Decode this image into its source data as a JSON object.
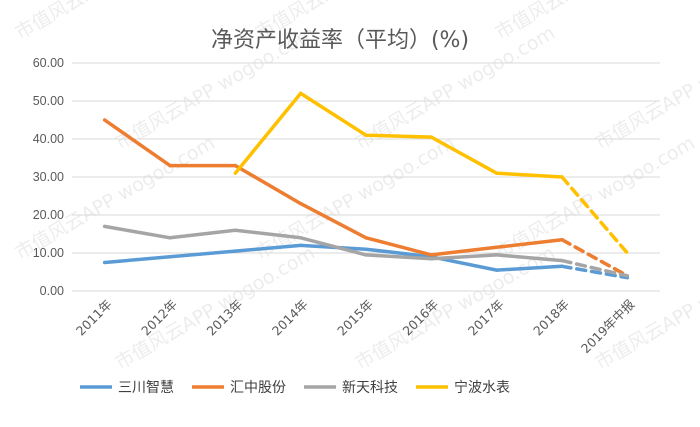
{
  "chart_data": {
    "type": "line",
    "title": "净资产收益率（平均）(%)",
    "categories": [
      "2011年",
      "2012年",
      "2013年",
      "2014年",
      "2015年",
      "2016年",
      "2017年",
      "2018年",
      "2019年中报"
    ],
    "ylim": [
      0,
      60
    ],
    "yticks": [
      "0.00",
      "10.00",
      "20.00",
      "30.00",
      "40.00",
      "50.00",
      "60.00"
    ],
    "grid": true,
    "legend_position": "bottom",
    "series": [
      {
        "name": "三川智慧",
        "color": "#5b9bd5",
        "values": [
          7.5,
          9.0,
          10.5,
          12.0,
          11.0,
          9.0,
          5.5,
          6.5,
          3.5
        ]
      },
      {
        "name": "汇中股份",
        "color": "#ed7d31",
        "values": [
          45.0,
          33.0,
          33.0,
          23.0,
          14.0,
          9.5,
          11.5,
          13.5,
          4.0
        ]
      },
      {
        "name": "新天科技",
        "color": "#a5a5a5",
        "values": [
          17.0,
          14.0,
          16.0,
          14.0,
          9.5,
          8.5,
          9.5,
          8.0,
          4.0
        ]
      },
      {
        "name": "宁波水表",
        "color": "#ffc000",
        "values": [
          null,
          null,
          31.0,
          52.0,
          41.0,
          40.5,
          31.0,
          30.0,
          10.0
        ]
      }
    ],
    "dashed_last_segment": true
  },
  "watermark": "市值风云APP  wogoo.com"
}
